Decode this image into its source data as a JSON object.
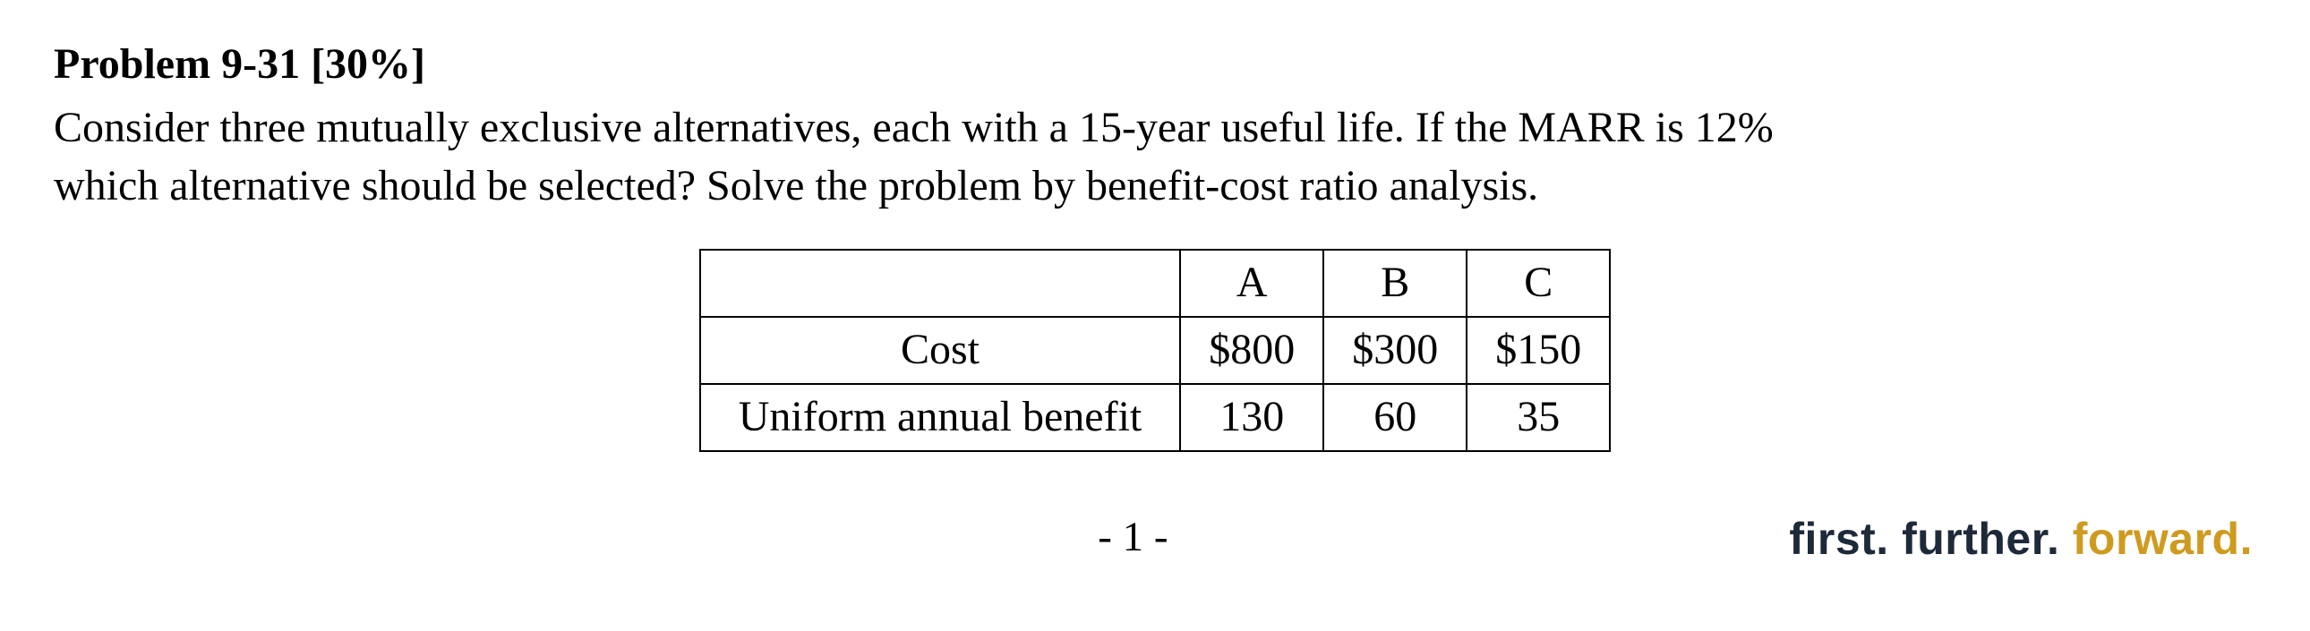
{
  "heading": {
    "label": "Problem 9-31 [30%]"
  },
  "body": {
    "line1": "Consider three mutually exclusive alternatives, each with a 15-year useful life. If the MARR is 12%",
    "line2": "which alternative should be selected? Solve the problem by benefit-cost ratio analysis."
  },
  "table": {
    "columns": [
      "A",
      "B",
      "C"
    ],
    "rows": [
      {
        "label": "Cost",
        "values": [
          "$800",
          "$300",
          "$150"
        ]
      },
      {
        "label": "Uniform annual benefit",
        "values": [
          "130",
          "60",
          "35"
        ]
      }
    ],
    "border_color": "#000000",
    "cell_padding": "4px 24px",
    "font_size": 48
  },
  "footer": {
    "page": "- 1 -",
    "tagline": {
      "t1": "first.",
      "t2": "further.",
      "t3": "forward.",
      "t1_color": "#1e2a3a",
      "t2_color": "#1e2a3a",
      "t3_color": "#cf9b1f"
    }
  }
}
